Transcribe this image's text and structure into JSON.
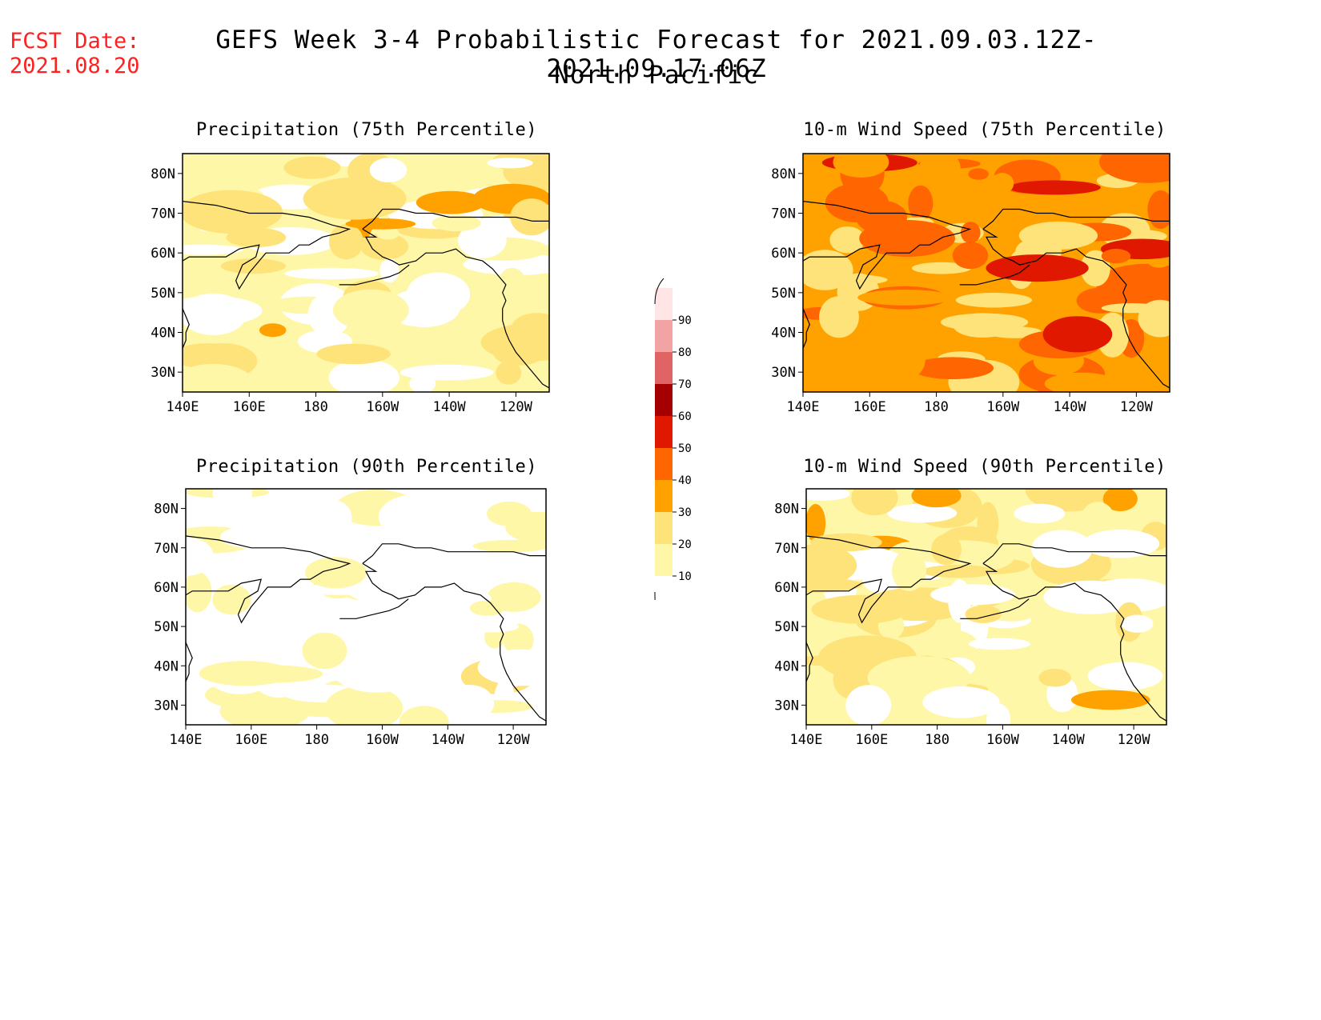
{
  "header": {
    "fcst_label": "FCST Date:",
    "fcst_date": "2021.08.20",
    "title": "GEFS Week 3-4 Probabilistic Forecast for 2021.09.03.12Z-2021.09.17.06Z",
    "subtitle": "North Pacific"
  },
  "axes": {
    "lat_ticks": [
      "80N",
      "70N",
      "60N",
      "50N",
      "40N",
      "30N"
    ],
    "lon_ticks": [
      "140E",
      "160E",
      "180",
      "160W",
      "140W",
      "120W"
    ]
  },
  "panels": [
    {
      "title": "Precipitation (75th Percentile)",
      "base_level": 1
    },
    {
      "title": "10-m Wind Speed (75th Percentile)",
      "base_level": 3
    },
    {
      "title": "Precipitation (90th Percentile)",
      "base_level": 0
    },
    {
      "title": "10-m Wind Speed (90th Percentile)",
      "base_level": 1
    }
  ],
  "colorbar": {
    "labels": [
      "10",
      "20",
      "30",
      "40",
      "50",
      "60",
      "70",
      "80",
      "90"
    ],
    "colors": [
      "#ffffff",
      "#fff7a8",
      "#fee37a",
      "#ffa200",
      "#ff6500",
      "#e01800",
      "#a50000",
      "#e06464",
      "#f2a3a3",
      "#ffe5e5"
    ]
  }
}
